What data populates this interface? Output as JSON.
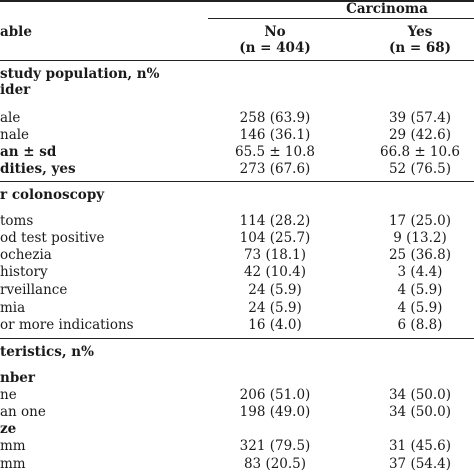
{
  "header": {
    "group": "Carcinoma",
    "variable": "able",
    "col_no": "No",
    "col_yes": "Yes",
    "n_no": "(n = 404)",
    "n_yes": "(n = 68)"
  },
  "section1": {
    "title": "study population, n%",
    "sub": "ider",
    "rows": [
      {
        "label": "ale",
        "no": "258 (63.9)",
        "yes": "39 (57.4)",
        "bold": false
      },
      {
        "label": "nale",
        "no": "146 (36.1)",
        "yes": "29 (42.6)",
        "bold": false
      },
      {
        "label": "an ± sd",
        "no": "65.5 ± 10.8",
        "yes": "66.8 ± 10.6",
        "bold": true
      },
      {
        "label": "dities, yes",
        "no": "273 (67.6)",
        "yes": "52 (76.5)",
        "bold": true
      }
    ]
  },
  "section2": {
    "title": "r colonoscopy",
    "rows": [
      {
        "label": "toms",
        "no": "114 (28.2)",
        "yes": "17 (25.0)"
      },
      {
        "label": "od test positive",
        "no": "104 (25.7)",
        "yes": "9 (13.2)"
      },
      {
        "label": "ochezia",
        "no": "73 (18.1)",
        "yes": "25 (36.8)"
      },
      {
        "label": "history",
        "no": "42 (10.4)",
        "yes": "3 (4.4)"
      },
      {
        "label": "rveillance",
        "no": "24 (5.9)",
        "yes": "4 (5.9)"
      },
      {
        "label": "mia",
        "no": "24 (5.9)",
        "yes": "4 (5.9)"
      },
      {
        "label": "or more indications",
        "no": "16 (4.0)",
        "yes": "6 (8.8)"
      }
    ]
  },
  "section3": {
    "title": "teristics, n%",
    "sub1": "nber",
    "rows1": [
      {
        "label": "ne",
        "no": "206 (51.0)",
        "yes": "34 (50.0)"
      },
      {
        "label": "an one",
        "no": "198 (49.0)",
        "yes": "34 (50.0)"
      }
    ],
    "sub2": "ze",
    "rows2": [
      {
        "label": "mm",
        "no": "321 (79.5)",
        "yes": "31 (45.6)"
      },
      {
        "label": "mm",
        "no": "83 (20.5)",
        "yes": "37 (54.4)"
      }
    ]
  }
}
